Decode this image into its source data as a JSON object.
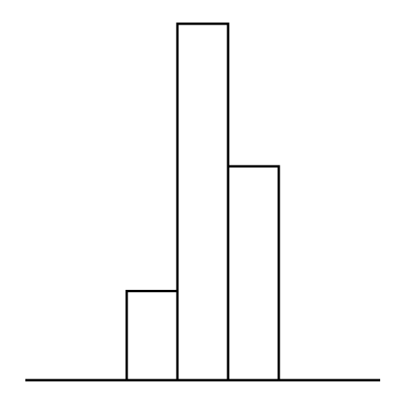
{
  "chart_data": {
    "type": "bar",
    "categories": [
      "",
      "",
      "",
      "",
      "",
      "",
      ""
    ],
    "values": [
      0,
      0,
      1,
      4,
      2.4,
      0,
      0
    ],
    "ylim": [
      0,
      4
    ],
    "grid": false,
    "colors": {
      "bar_fill": "#ffffff",
      "bar_stroke": "#000000",
      "axis": "#000000"
    }
  }
}
